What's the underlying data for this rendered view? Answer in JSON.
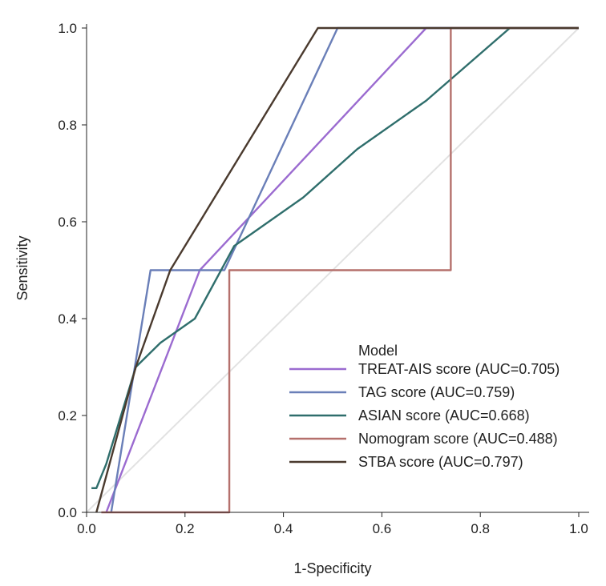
{
  "chart_data": {
    "type": "line",
    "title": "",
    "xlabel": "1-Specificity",
    "ylabel": "Sensitivity",
    "xlim": [
      0,
      1
    ],
    "ylim": [
      0,
      1
    ],
    "xticks": [
      "0.0",
      "0.2",
      "0.4",
      "0.6",
      "0.8",
      "1.0"
    ],
    "yticks": [
      "0.0",
      "0.2",
      "0.4",
      "0.6",
      "0.8",
      "1.0"
    ],
    "grid": false,
    "legend_title": "Model",
    "legend_position": "bottom-right",
    "reference_line": {
      "x": [
        0,
        1
      ],
      "y": [
        0,
        1
      ],
      "color": "#e2e2e2"
    },
    "series": [
      {
        "name": "TREAT-AIS score (AUC=0.705)",
        "color": "#9b6bd0",
        "x": [
          0.04,
          0.23,
          0.69,
          1.0
        ],
        "y": [
          0.0,
          0.5,
          1.0,
          1.0
        ]
      },
      {
        "name": "TAG score (AUC=0.759)",
        "color": "#6a7fb8",
        "x": [
          0.05,
          0.13,
          0.28,
          0.51,
          1.0
        ],
        "y": [
          0.0,
          0.5,
          0.5,
          1.0,
          1.0
        ]
      },
      {
        "name": "ASIAN score (AUC=0.668)",
        "color": "#2f6e6c",
        "x": [
          0.01,
          0.02,
          0.04,
          0.1,
          0.15,
          0.22,
          0.3,
          0.44,
          0.55,
          0.69,
          0.86,
          1.0
        ],
        "y": [
          0.05,
          0.05,
          0.1,
          0.3,
          0.35,
          0.4,
          0.55,
          0.65,
          0.75,
          0.85,
          1.0,
          1.0
        ]
      },
      {
        "name": "Nomogram score (AUC=0.488)",
        "color": "#b5706c",
        "x": [
          0.03,
          0.29,
          0.29,
          0.74,
          0.74,
          1.0
        ],
        "y": [
          0.0,
          0.0,
          0.5,
          0.5,
          1.0,
          1.0
        ]
      },
      {
        "name": "STBA score (AUC=0.797)",
        "color": "#4a3a2e",
        "x": [
          0.02,
          0.1,
          0.17,
          0.47,
          1.0
        ],
        "y": [
          0.0,
          0.3,
          0.5,
          1.0,
          1.0
        ]
      }
    ]
  }
}
